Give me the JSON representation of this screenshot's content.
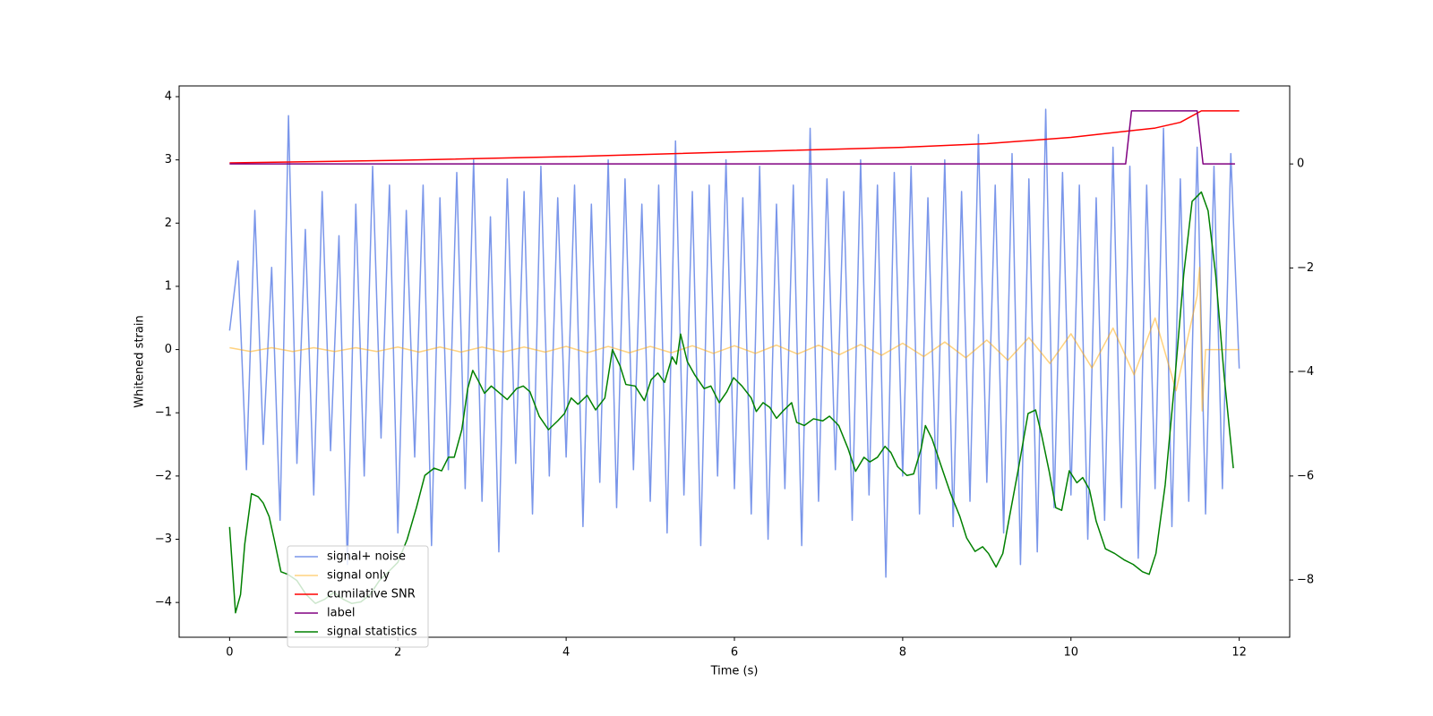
{
  "chart_data": {
    "type": "line",
    "xlabel": "Time (s)",
    "ylabel": "Whitened strain",
    "xlim": [
      -0.6,
      12.6
    ],
    "ylim": [
      -4.55,
      4.17
    ],
    "y2lim": [
      -9.1,
      1.5
    ],
    "xticks": [
      0,
      2,
      4,
      6,
      8,
      10,
      12
    ],
    "yticks": [
      {
        "value": -4,
        "label": "−4"
      },
      {
        "value": -3,
        "label": "−3"
      },
      {
        "value": -2,
        "label": "−2"
      },
      {
        "value": -1,
        "label": "−1"
      },
      0,
      1,
      2,
      3,
      4
    ],
    "y2ticks": [
      {
        "value": -8,
        "label": "−8"
      },
      {
        "value": -6,
        "label": "−6"
      },
      {
        "value": -4,
        "label": "−4"
      },
      {
        "value": -2,
        "label": "−2"
      },
      0
    ],
    "legend": "lower left",
    "series": [
      {
        "name": "signal+ noise",
        "color": "#4169e1",
        "alpha": 0.7,
        "x": [
          0,
          0.1,
          0.2,
          0.3,
          0.4,
          0.5,
          0.6,
          0.7,
          0.8,
          0.9,
          1,
          1.1,
          1.2,
          1.3,
          1.4,
          1.5,
          1.6,
          1.7,
          1.8,
          1.9,
          2,
          2.1,
          2.2,
          2.3,
          2.4,
          2.5,
          2.6,
          2.7,
          2.8,
          2.9,
          3,
          3.1,
          3.2,
          3.3,
          3.4,
          3.5,
          3.6,
          3.7,
          3.8,
          3.9,
          4,
          4.1,
          4.2,
          4.3,
          4.4,
          4.5,
          4.6,
          4.7,
          4.8,
          4.9,
          5,
          5.1,
          5.2,
          5.3,
          5.4,
          5.5,
          5.6,
          5.7,
          5.8,
          5.9,
          6,
          6.1,
          6.2,
          6.3,
          6.4,
          6.5,
          6.6,
          6.7,
          6.8,
          6.9,
          7,
          7.1,
          7.2,
          7.3,
          7.4,
          7.5,
          7.6,
          7.7,
          7.8,
          7.9,
          8,
          8.1,
          8.2,
          8.3,
          8.4,
          8.5,
          8.6,
          8.7,
          8.8,
          8.9,
          9,
          9.1,
          9.2,
          9.3,
          9.4,
          9.5,
          9.6,
          9.7,
          9.8,
          9.9,
          10,
          10.1,
          10.2,
          10.3,
          10.4,
          10.5,
          10.6,
          10.7,
          10.8,
          10.9,
          11,
          11.1,
          11.2,
          11.3,
          11.4,
          11.5,
          11.6,
          11.7,
          11.8,
          11.9,
          12
        ],
        "values": [
          0.3,
          1.4,
          -1.9,
          2.2,
          -1.5,
          1.3,
          -2.7,
          3.7,
          -1.8,
          1.9,
          -2.3,
          2.5,
          -1.6,
          1.8,
          -3.4,
          2.3,
          -2.0,
          2.9,
          -1.4,
          2.6,
          -2.9,
          2.2,
          -1.7,
          2.6,
          -3.1,
          2.4,
          -1.9,
          2.8,
          -2.2,
          3.0,
          -2.4,
          2.1,
          -3.2,
          2.7,
          -1.8,
          2.5,
          -2.6,
          2.9,
          -2.0,
          2.4,
          -1.7,
          2.6,
          -2.8,
          2.3,
          -2.1,
          3.0,
          -2.5,
          2.7,
          -1.9,
          2.3,
          -2.4,
          2.6,
          -2.9,
          3.3,
          -2.3,
          2.5,
          -3.1,
          2.6,
          -2.0,
          3.0,
          -2.2,
          2.4,
          -2.6,
          2.9,
          -3.0,
          2.3,
          -2.2,
          2.6,
          -3.1,
          3.5,
          -2.4,
          2.7,
          -1.9,
          2.5,
          -2.7,
          3.0,
          -2.3,
          2.6,
          -3.6,
          2.8,
          -2.0,
          2.9,
          -2.6,
          2.4,
          -2.2,
          3.0,
          -2.8,
          2.5,
          -2.4,
          3.4,
          -2.1,
          2.6,
          -2.9,
          3.1,
          -3.4,
          2.7,
          -3.2,
          3.8,
          -2.5,
          2.8,
          -2.3,
          2.6,
          -3.0,
          2.4,
          -2.7,
          3.2,
          -2.5,
          2.9,
          -3.3,
          2.6,
          -2.2,
          3.5,
          -2.8,
          2.7,
          -2.4,
          3.2,
          -2.6,
          2.9,
          -2.2,
          3.1,
          -0.3
        ]
      },
      {
        "name": "signal only",
        "color": "orange",
        "alpha": 0.5,
        "x": [
          0,
          0.25,
          0.5,
          0.75,
          1,
          1.25,
          1.5,
          1.75,
          2,
          2.25,
          2.5,
          2.75,
          3,
          3.25,
          3.5,
          3.75,
          4,
          4.25,
          4.5,
          4.75,
          5,
          5.25,
          5.5,
          5.75,
          6,
          6.25,
          6.5,
          6.75,
          7,
          7.25,
          7.5,
          7.75,
          8,
          8.25,
          8.5,
          8.75,
          9,
          9.25,
          9.5,
          9.75,
          10,
          10.25,
          10.5,
          10.75,
          11,
          11.25,
          11.5,
          11.53,
          11.56,
          11.6,
          12
        ],
        "values": [
          0.03,
          -0.03,
          0.03,
          -0.03,
          0.03,
          -0.03,
          0.03,
          -0.03,
          0.04,
          -0.04,
          0.04,
          -0.04,
          0.04,
          -0.04,
          0.04,
          -0.04,
          0.05,
          -0.05,
          0.05,
          -0.05,
          0.05,
          -0.05,
          0.06,
          -0.06,
          0.06,
          -0.06,
          0.07,
          -0.07,
          0.07,
          -0.08,
          0.08,
          -0.09,
          0.1,
          -0.11,
          0.12,
          -0.13,
          0.15,
          -0.17,
          0.19,
          -0.22,
          0.25,
          -0.29,
          0.34,
          -0.4,
          0.5,
          -0.65,
          0.85,
          1.3,
          -0.97,
          0,
          0
        ]
      },
      {
        "name": "cumilative SNR",
        "color": "red",
        "alpha": 1,
        "axis": "y2",
        "x": [
          0,
          2,
          4,
          6,
          8,
          9,
          10,
          10.5,
          11,
          11.3,
          11.55,
          12
        ],
        "values": [
          0.02,
          0.07,
          0.14,
          0.23,
          0.32,
          0.39,
          0.51,
          0.6,
          0.69,
          0.8,
          1.02,
          1.02
        ]
      },
      {
        "name": "label",
        "color": "purple",
        "alpha": 1,
        "axis": "y2",
        "x": [
          0,
          10.65,
          10.72,
          11.5,
          11.57,
          11.95
        ],
        "values": [
          0,
          0,
          1.02,
          1.02,
          0,
          0
        ]
      },
      {
        "name": "signal statistics",
        "color": "green",
        "alpha": 1,
        "axis": "y2",
        "x": [
          0,
          0.07,
          0.13,
          0.18,
          0.26,
          0.34,
          0.4,
          0.47,
          0.53,
          0.61,
          0.69,
          0.8,
          0.91,
          1.02,
          1.13,
          1.24,
          1.35,
          1.45,
          1.56,
          1.67,
          1.78,
          1.89,
          2,
          2.11,
          2.22,
          2.32,
          2.43,
          2.52,
          2.6,
          2.67,
          2.76,
          2.83,
          2.89,
          2.95,
          3.03,
          3.11,
          3.19,
          3.3,
          3.41,
          3.49,
          3.57,
          3.68,
          3.79,
          3.9,
          3.98,
          4.06,
          4.14,
          4.25,
          4.35,
          4.46,
          4.55,
          4.64,
          4.71,
          4.82,
          4.93,
          5.01,
          5.09,
          5.17,
          5.26,
          5.31,
          5.36,
          5.44,
          5.53,
          5.64,
          5.72,
          5.82,
          5.91,
          5.99,
          6.09,
          6.2,
          6.26,
          6.34,
          6.42,
          6.5,
          6.59,
          6.68,
          6.74,
          6.83,
          6.94,
          7.05,
          7.13,
          7.24,
          7.35,
          7.44,
          7.54,
          7.61,
          7.7,
          7.79,
          7.86,
          7.94,
          8.05,
          8.13,
          8.22,
          8.27,
          8.35,
          8.46,
          8.57,
          8.68,
          8.76,
          8.86,
          8.95,
          9.02,
          9.11,
          9.19,
          9.27,
          9.38,
          9.49,
          9.58,
          9.65,
          9.74,
          9.82,
          9.89,
          9.98,
          10.07,
          10.14,
          10.22,
          10.3,
          10.41,
          10.52,
          10.63,
          10.74,
          10.85,
          10.93,
          11.01,
          11.12,
          11.23,
          11.34,
          11.44,
          11.55,
          11.63,
          11.72,
          11.82,
          11.93
        ],
        "values": [
          -6.98,
          -8.63,
          -8.28,
          -7.31,
          -6.34,
          -6.4,
          -6.52,
          -6.78,
          -7.22,
          -7.84,
          -7.89,
          -8.01,
          -8.28,
          -8.45,
          -8.37,
          -8.24,
          -8.37,
          -8.45,
          -8.42,
          -8.28,
          -8.01,
          -7.84,
          -7.66,
          -7.22,
          -6.61,
          -5.99,
          -5.85,
          -5.9,
          -5.64,
          -5.64,
          -5.11,
          -4.32,
          -3.97,
          -4.15,
          -4.41,
          -4.27,
          -4.38,
          -4.53,
          -4.32,
          -4.27,
          -4.38,
          -4.85,
          -5.11,
          -4.94,
          -4.8,
          -4.5,
          -4.62,
          -4.45,
          -4.73,
          -4.5,
          -3.57,
          -3.88,
          -4.24,
          -4.27,
          -4.55,
          -4.15,
          -4.02,
          -4.2,
          -3.71,
          -3.85,
          -3.27,
          -3.8,
          -4.06,
          -4.32,
          -4.27,
          -4.59,
          -4.38,
          -4.11,
          -4.27,
          -4.5,
          -4.76,
          -4.59,
          -4.68,
          -4.89,
          -4.73,
          -4.59,
          -4.97,
          -5.03,
          -4.9,
          -4.94,
          -4.85,
          -5.03,
          -5.47,
          -5.91,
          -5.64,
          -5.73,
          -5.64,
          -5.43,
          -5.55,
          -5.82,
          -5.99,
          -5.96,
          -5.47,
          -5.03,
          -5.29,
          -5.82,
          -6.34,
          -6.78,
          -7.19,
          -7.45,
          -7.36,
          -7.49,
          -7.75,
          -7.49,
          -6.78,
          -5.82,
          -4.8,
          -4.73,
          -5.2,
          -5.9,
          -6.61,
          -6.66,
          -5.9,
          -6.13,
          -6.03,
          -6.26,
          -6.87,
          -7.4,
          -7.49,
          -7.61,
          -7.7,
          -7.84,
          -7.89,
          -7.49,
          -6.17,
          -4.24,
          -2.13,
          -0.72,
          -0.54,
          -0.9,
          -2.13,
          -4.06,
          -5.85
        ]
      }
    ]
  }
}
